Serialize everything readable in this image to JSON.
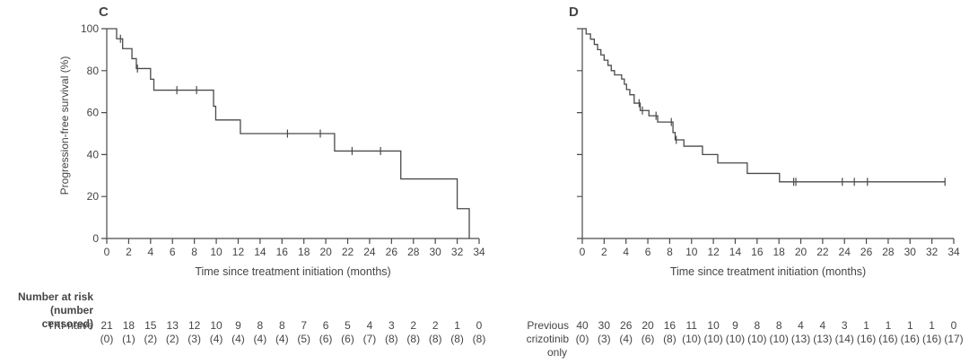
{
  "figure": {
    "risk_header": [
      "Number at risk",
      "(number censored)"
    ],
    "colors": {
      "text": "#454545",
      "line": "#4a4a4a",
      "background": "#ffffff"
    }
  },
  "chart_data": [
    {
      "type": "line",
      "subtype": "kaplan-meier-step",
      "panel_label": "C",
      "group": "TKI-naive",
      "xlabel": "Time since treatment initiation (months)",
      "ylabel": "Progression-free survival (%)",
      "xlim": [
        0,
        34
      ],
      "xtick_step": 2,
      "ylim": [
        0,
        100
      ],
      "yticks": [
        0,
        20,
        40,
        60,
        80,
        100
      ],
      "show_ytick_labels": true,
      "steps_time_percent": [
        [
          0,
          100
        ],
        [
          0.9,
          95.2
        ],
        [
          1.45,
          90.5
        ],
        [
          2.3,
          85.7
        ],
        [
          2.7,
          81
        ],
        [
          4.0,
          75.9
        ],
        [
          4.3,
          70.7
        ],
        [
          9.75,
          63
        ],
        [
          9.95,
          56.5
        ],
        [
          12.2,
          50
        ],
        [
          20.8,
          41.7
        ],
        [
          26.85,
          28.4
        ],
        [
          32.0,
          14.2
        ],
        [
          33.1,
          0
        ]
      ],
      "curve_end_x": 33.1,
      "censor_marks_time_percent": [
        [
          1.25,
          95.2
        ],
        [
          2.8,
          81
        ],
        [
          6.4,
          70.7
        ],
        [
          8.2,
          70.7
        ],
        [
          16.5,
          50
        ],
        [
          19.5,
          50
        ],
        [
          22.4,
          41.7
        ],
        [
          25.0,
          41.7
        ]
      ],
      "at_risk": {
        "label_lines": [
          "TKI-naive"
        ],
        "times": [
          0,
          2,
          4,
          6,
          8,
          10,
          12,
          14,
          16,
          18,
          20,
          22,
          24,
          26,
          28,
          30,
          32,
          34
        ],
        "n": [
          21,
          18,
          15,
          13,
          12,
          10,
          9,
          8,
          8,
          7,
          6,
          5,
          4,
          3,
          2,
          2,
          1,
          0
        ],
        "censored": [
          "(0)",
          "(1)",
          "(2)",
          "(2)",
          "(3)",
          "(4)",
          "(4)",
          "(4)",
          "(4)",
          "(5)",
          "(6)",
          "(6)",
          "(7)",
          "(8)",
          "(8)",
          "(8)",
          "(8)",
          "(8)"
        ]
      }
    },
    {
      "type": "line",
      "subtype": "kaplan-meier-step",
      "panel_label": "D",
      "group": "Previous crizotinib only",
      "xlabel": "Time since treatment initiation (months)",
      "xlim": [
        0,
        34
      ],
      "xtick_step": 2,
      "ylim": [
        0,
        100
      ],
      "yticks": [
        0,
        20,
        40,
        60,
        80,
        100
      ],
      "show_ytick_labels": false,
      "steps_time_percent": [
        [
          0,
          100
        ],
        [
          0.35,
          97.5
        ],
        [
          0.75,
          95
        ],
        [
          1.1,
          92.5
        ],
        [
          1.4,
          90
        ],
        [
          1.7,
          87.5
        ],
        [
          2.0,
          85
        ],
        [
          2.35,
          82.5
        ],
        [
          2.65,
          80
        ],
        [
          2.95,
          78
        ],
        [
          3.6,
          76
        ],
        [
          3.85,
          73.5
        ],
        [
          4.05,
          71
        ],
        [
          4.35,
          68.5
        ],
        [
          4.75,
          64.5
        ],
        [
          5.3,
          61
        ],
        [
          6.1,
          58.5
        ],
        [
          6.9,
          55.5
        ],
        [
          8.3,
          50.5
        ],
        [
          8.5,
          47
        ],
        [
          9.3,
          44
        ],
        [
          11.0,
          40
        ],
        [
          12.4,
          36
        ],
        [
          15.1,
          31
        ],
        [
          18.05,
          27
        ]
      ],
      "curve_end_x": 33.2,
      "censor_marks_time_percent": [
        [
          5.2,
          64.5
        ],
        [
          5.5,
          61
        ],
        [
          6.75,
          58.5
        ],
        [
          8.15,
          55.5
        ],
        [
          8.6,
          47
        ],
        [
          19.35,
          27
        ],
        [
          19.55,
          27
        ],
        [
          23.8,
          27
        ],
        [
          24.9,
          27
        ],
        [
          26.1,
          27
        ],
        [
          33.2,
          27
        ]
      ],
      "at_risk": {
        "label_lines": [
          "Previous",
          "crizotinib",
          "only"
        ],
        "times": [
          0,
          2,
          4,
          6,
          8,
          10,
          12,
          14,
          16,
          18,
          20,
          22,
          24,
          26,
          28,
          30,
          32,
          34
        ],
        "n": [
          40,
          30,
          26,
          20,
          16,
          11,
          10,
          9,
          8,
          8,
          4,
          4,
          3,
          1,
          1,
          1,
          1,
          0
        ],
        "censored": [
          "(0)",
          "(3)",
          "(4)",
          "(6)",
          "(8)",
          "(10)",
          "(10)",
          "(10)",
          "(10)",
          "(10)",
          "(13)",
          "(13)",
          "(14)",
          "(16)",
          "(16)",
          "(16)",
          "(16)",
          "(17)"
        ]
      }
    }
  ]
}
